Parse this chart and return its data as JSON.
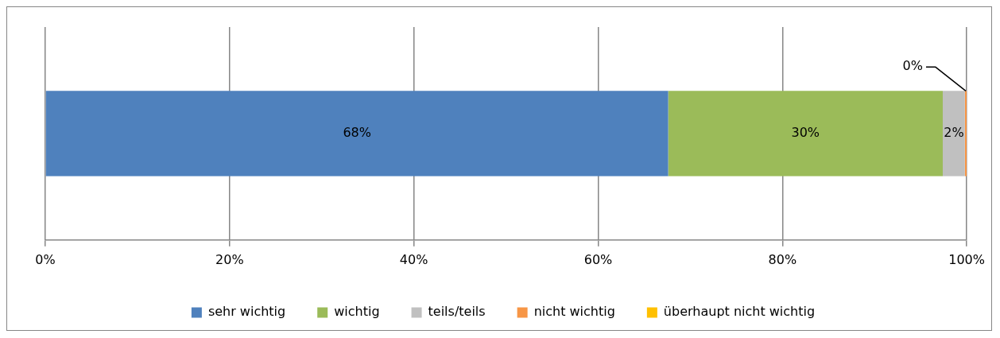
{
  "chart_data": {
    "type": "bar",
    "orientation": "horizontal",
    "stacked": true,
    "categories": [
      null
    ],
    "series": [
      {
        "name": "sehr wichtig",
        "color": "#4f81bd",
        "values": [
          67.6
        ],
        "value_labels": [
          "68%"
        ]
      },
      {
        "name": "wichtig",
        "color": "#9bbb59",
        "values": [
          29.8
        ],
        "value_labels": [
          "30%"
        ]
      },
      {
        "name": "teils/teils",
        "color": "#c0c0c0",
        "values": [
          2.4
        ],
        "value_labels": [
          "2%"
        ]
      },
      {
        "name": "nicht wichtig",
        "color": "#f79646",
        "values": [
          0.2
        ],
        "value_labels": [
          "0%"
        ]
      },
      {
        "name": "überhaupt nicht wichtig",
        "color": "#ffc000",
        "values": [
          0
        ],
        "value_labels": [
          null
        ]
      }
    ],
    "xlim": [
      0,
      100
    ],
    "xticks": [
      {
        "value": 0,
        "label": "0%"
      },
      {
        "value": 20,
        "label": "20%"
      },
      {
        "value": 40,
        "label": "40%"
      },
      {
        "value": 60,
        "label": "60%"
      },
      {
        "value": 80,
        "label": "80%"
      },
      {
        "value": 100,
        "label": "100%"
      }
    ],
    "grid": "x",
    "legend": "bottom",
    "tick_labels": "x"
  }
}
